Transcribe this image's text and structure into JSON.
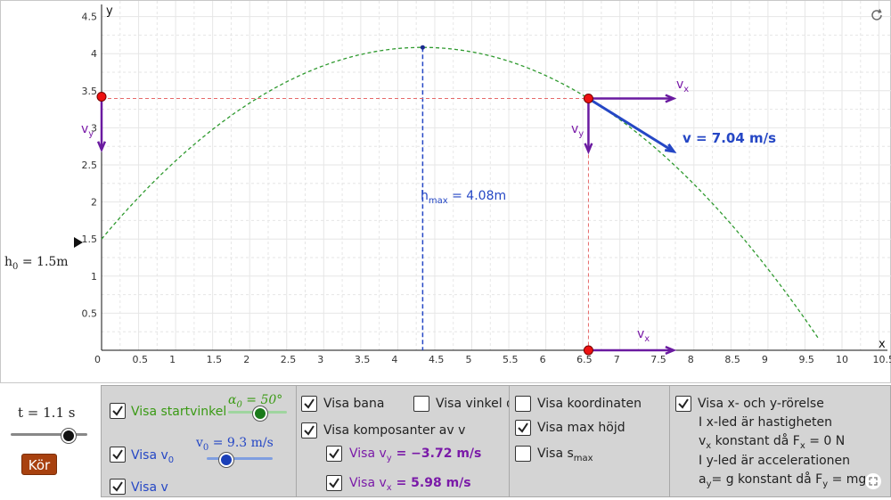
{
  "graph": {
    "axis_x_label": "x",
    "axis_y_label": "y",
    "x_ticks": [
      "0",
      "0.5",
      "1",
      "1.5",
      "2",
      "2.5",
      "3",
      "3.5",
      "4",
      "4.5",
      "5",
      "5.5",
      "6",
      "6.5",
      "7",
      "7.5",
      "8",
      "8.5",
      "9",
      "9.5",
      "10",
      "10.5"
    ],
    "y_ticks": [
      "0.5",
      "1",
      "1.5",
      "2",
      "2.5",
      "3",
      "3.5",
      "4",
      "4.5"
    ],
    "h0_label": "h",
    "h0_sub": "0",
    "h0_value": " = 1.5m",
    "hmax_label": "h",
    "hmax_sub": "max",
    "hmax_value": " = 4.08m",
    "v_label": "v = 7.04 m/s",
    "vx_label": "v",
    "vx_sub": "x",
    "vy_label": "v",
    "vy_sub": "y",
    "colors": {
      "trajectory": "#2f9a2f",
      "velocity": "#2547c5",
      "component": "#6a1aa0",
      "guide_red": "#e76a6a",
      "guide_blue": "#2547c5",
      "point": "#e11"
    },
    "icons": {
      "refresh": "refresh-icon",
      "fullscreen": "fullscreen-icon",
      "play": "play-triangle-icon"
    }
  },
  "controls": {
    "time_label": "t = 1.1 s",
    "time_fraction": 0.75,
    "run_button": "Kör",
    "show_launch_angle": "Visa startvinkel",
    "angle_slider_label": "α",
    "angle_slider_sub": "0",
    "angle_slider_value": " = 50°",
    "angle_fraction": 0.55,
    "show_v0": "Visa v",
    "show_v0_sub": "0",
    "v0_slider_label": "v",
    "v0_slider_sub": "0",
    "v0_slider_value": " = 9.3 m/s",
    "v0_fraction": 0.3,
    "show_v": "Visa v",
    "show_path": "Visa bana",
    "show_angle": "Visa vinkel α",
    "show_components": "Visa komposanter av v",
    "show_vy": "Visa v",
    "show_vy_sub": "y",
    "vy_value": " = −3.72 m/s",
    "show_vx": "Visa v",
    "show_vx_sub": "x",
    "vx_value": " = 5.98 m/s",
    "show_coords": "Visa koordinaten",
    "show_max_height": "Visa max höjd",
    "show_smax": "Visa s",
    "show_smax_sub": "max",
    "show_xy_motion": "Visa x- och y-rörelse",
    "text_line1": "I x-led är hastigheten",
    "text_line2a": "v",
    "text_line2sub": "x",
    "text_line2b": " konstant då F",
    "text_line2sub2": "x",
    "text_line2c": " = 0 N",
    "text_line3": "I y-led är accelerationen",
    "text_line4a": "a",
    "text_line4sub": "y",
    "text_line4b": "= g konstant då F",
    "text_line4sub2": "y",
    "text_line4c": " = mg"
  }
}
